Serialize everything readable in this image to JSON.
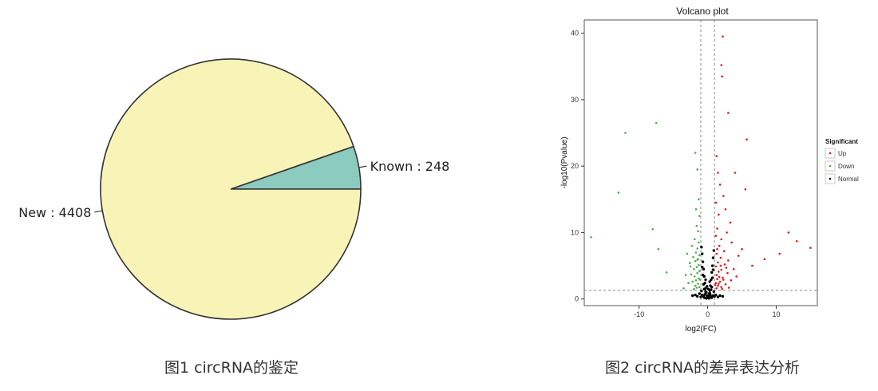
{
  "figures": {
    "pie_caption": "图1 circRNA的鉴定",
    "volcano_caption": "图2 circRNA的差异表达分析"
  },
  "chart_data": [
    {
      "type": "pie",
      "slices": [
        {
          "label": "Known",
          "value": 248,
          "display": "Known : 248",
          "color": "#8ccbbf"
        },
        {
          "label": "New",
          "value": 4408,
          "display": "New : 4408",
          "color": "#f8f4b8"
        }
      ],
      "title": "",
      "legend": "none"
    },
    {
      "type": "scatter",
      "title": "Volcano plot",
      "xlabel": "log2(FC)",
      "ylabel": "-log10(Pvalue)",
      "xlim": [
        -18,
        16
      ],
      "ylim": [
        -1,
        42
      ],
      "x_ticks": [
        -10,
        0,
        10
      ],
      "y_ticks": [
        0,
        10,
        20,
        30,
        40
      ],
      "grid": false,
      "thresholds": {
        "x": [
          -1,
          1
        ],
        "y": 1.3
      },
      "legend": {
        "title": "Significant",
        "placement": "right",
        "entries": [
          {
            "name": "Up",
            "color": "#e41a1c"
          },
          {
            "name": "Down",
            "color": "#4daf4a"
          },
          {
            "name": "Normal",
            "color": "#000000"
          }
        ]
      },
      "series": [
        {
          "name": "Up",
          "points": [
            [
              2.2,
              39.5
            ],
            [
              2.0,
              35.2
            ],
            [
              2.1,
              33.5
            ],
            [
              3.0,
              28.0
            ],
            [
              5.7,
              24.0
            ],
            [
              1.3,
              21.5
            ],
            [
              1.5,
              19.0
            ],
            [
              4.0,
              19.0
            ],
            [
              1.8,
              17.2
            ],
            [
              5.5,
              16.5
            ],
            [
              2.3,
              15.5
            ],
            [
              1.2,
              14.5
            ],
            [
              2.6,
              13.5
            ],
            [
              1.6,
              12.7
            ],
            [
              3.3,
              11.5
            ],
            [
              1.4,
              10.6
            ],
            [
              2.8,
              10.0
            ],
            [
              11.8,
              10.0
            ],
            [
              13.0,
              8.7
            ],
            [
              15.0,
              7.7
            ],
            [
              1.2,
              9.5
            ],
            [
              2.0,
              9.0
            ],
            [
              3.5,
              8.5
            ],
            [
              1.7,
              8.0
            ],
            [
              5.0,
              7.5
            ],
            [
              2.4,
              7.2
            ],
            [
              1.3,
              6.8
            ],
            [
              4.5,
              6.5
            ],
            [
              10.5,
              6.8
            ],
            [
              8.3,
              6.0
            ],
            [
              1.9,
              6.2
            ],
            [
              3.0,
              5.8
            ],
            [
              1.5,
              5.5
            ],
            [
              2.5,
              5.2
            ],
            [
              6.5,
              5.0
            ],
            [
              1.2,
              4.9
            ],
            [
              3.8,
              4.5
            ],
            [
              2.0,
              4.4
            ],
            [
              1.6,
              4.1
            ],
            [
              2.9,
              3.9
            ],
            [
              1.3,
              3.6
            ],
            [
              4.2,
              3.4
            ],
            [
              2.2,
              3.2
            ],
            [
              1.4,
              3.0
            ],
            [
              3.4,
              2.8
            ],
            [
              1.8,
              2.6
            ],
            [
              1.2,
              2.4
            ],
            [
              2.6,
              2.2
            ],
            [
              1.5,
              2.0
            ],
            [
              2.0,
              1.8
            ],
            [
              1.3,
              1.6
            ],
            [
              3.1,
              1.7
            ],
            [
              1.7,
              3.3
            ],
            [
              2.3,
              2.9
            ],
            [
              1.1,
              2.1
            ],
            [
              1.9,
              5.0
            ],
            [
              2.7,
              4.7
            ],
            [
              1.4,
              7.5
            ],
            [
              1.6,
              2.3
            ],
            [
              2.1,
              1.5
            ]
          ]
        },
        {
          "name": "Down",
          "points": [
            [
              -12.0,
              25.0
            ],
            [
              -7.5,
              26.5
            ],
            [
              -1.8,
              22.0
            ],
            [
              -1.5,
              19.5
            ],
            [
              -13.0,
              16.0
            ],
            [
              -1.3,
              15.0
            ],
            [
              -1.7,
              13.5
            ],
            [
              -1.2,
              12.5
            ],
            [
              -1.6,
              11.0
            ],
            [
              -1.4,
              10.2
            ],
            [
              -8.0,
              10.5
            ],
            [
              -17.0,
              9.3
            ],
            [
              -1.9,
              9.0
            ],
            [
              -1.3,
              8.5
            ],
            [
              -2.3,
              8.0
            ],
            [
              -1.5,
              7.6
            ],
            [
              -7.2,
              7.5
            ],
            [
              -1.7,
              7.0
            ],
            [
              -1.2,
              6.6
            ],
            [
              -2.1,
              6.3
            ],
            [
              -1.4,
              6.0
            ],
            [
              -1.8,
              5.7
            ],
            [
              -2.6,
              5.4
            ],
            [
              -1.3,
              5.1
            ],
            [
              -1.6,
              4.8
            ],
            [
              -2.0,
              4.5
            ],
            [
              -1.2,
              4.2
            ],
            [
              -1.5,
              3.9
            ],
            [
              -2.4,
              3.7
            ],
            [
              -1.9,
              3.4
            ],
            [
              -1.3,
              3.1
            ],
            [
              -1.7,
              2.8
            ],
            [
              -2.2,
              2.6
            ],
            [
              -1.4,
              2.3
            ],
            [
              -1.8,
              2.0
            ],
            [
              -1.2,
              1.8
            ],
            [
              -2.8,
              2.4
            ],
            [
              -3.2,
              3.6
            ],
            [
              -6.0,
              4.0
            ],
            [
              -3.5,
              1.6
            ],
            [
              -2.0,
              1.5
            ],
            [
              -1.6,
              1.7
            ],
            [
              -1.1,
              2.9
            ],
            [
              -2.5,
              4.9
            ],
            [
              -1.5,
              5.9
            ],
            [
              -3.0,
              6.8
            ]
          ]
        },
        {
          "name": "Normal",
          "points": [
            [
              0.0,
              0.2
            ],
            [
              0.1,
              0.4
            ],
            [
              -0.1,
              0.5
            ],
            [
              0.2,
              0.8
            ],
            [
              -0.2,
              1.0
            ],
            [
              0.3,
              1.3
            ],
            [
              -0.3,
              1.6
            ],
            [
              0.4,
              2.0
            ],
            [
              -0.4,
              2.4
            ],
            [
              0.5,
              2.9
            ],
            [
              -0.5,
              3.4
            ],
            [
              0.6,
              4.0
            ],
            [
              -0.6,
              4.5
            ],
            [
              0.7,
              5.0
            ],
            [
              -0.7,
              5.6
            ],
            [
              0.8,
              6.2
            ],
            [
              -0.8,
              6.8
            ],
            [
              0.9,
              7.3
            ],
            [
              -0.9,
              7.8
            ],
            [
              0.5,
              0.3
            ],
            [
              -0.5,
              0.2
            ],
            [
              0.8,
              0.5
            ],
            [
              -0.8,
              0.6
            ],
            [
              1.0,
              0.4
            ],
            [
              -1.0,
              0.3
            ],
            [
              0.3,
              0.9
            ],
            [
              -0.3,
              1.1
            ],
            [
              0.6,
              1.8
            ],
            [
              -0.6,
              2.2
            ],
            [
              0.2,
              0.1
            ],
            [
              -0.2,
              0.1
            ],
            [
              0.7,
              3.2
            ],
            [
              -0.7,
              3.6
            ],
            [
              1.2,
              0.6
            ],
            [
              -1.2,
              0.8
            ],
            [
              1.5,
              0.3
            ],
            [
              -1.5,
              0.4
            ],
            [
              0.4,
              0.6
            ],
            [
              -0.4,
              0.7
            ],
            [
              0.9,
              1.1
            ],
            [
              -0.9,
              1.2
            ],
            [
              0.1,
              1.5
            ],
            [
              -0.1,
              1.9
            ],
            [
              0.6,
              0.2
            ],
            [
              -0.6,
              0.4
            ],
            [
              1.8,
              0.5
            ],
            [
              -1.8,
              0.6
            ],
            [
              2.2,
              0.4
            ],
            [
              -2.2,
              0.5
            ],
            [
              0.3,
              2.6
            ],
            [
              -0.3,
              2.9
            ],
            [
              0.8,
              4.4
            ],
            [
              -0.8,
              4.8
            ],
            [
              0.5,
              1.4
            ],
            [
              -0.5,
              1.5
            ]
          ]
        }
      ]
    }
  ]
}
